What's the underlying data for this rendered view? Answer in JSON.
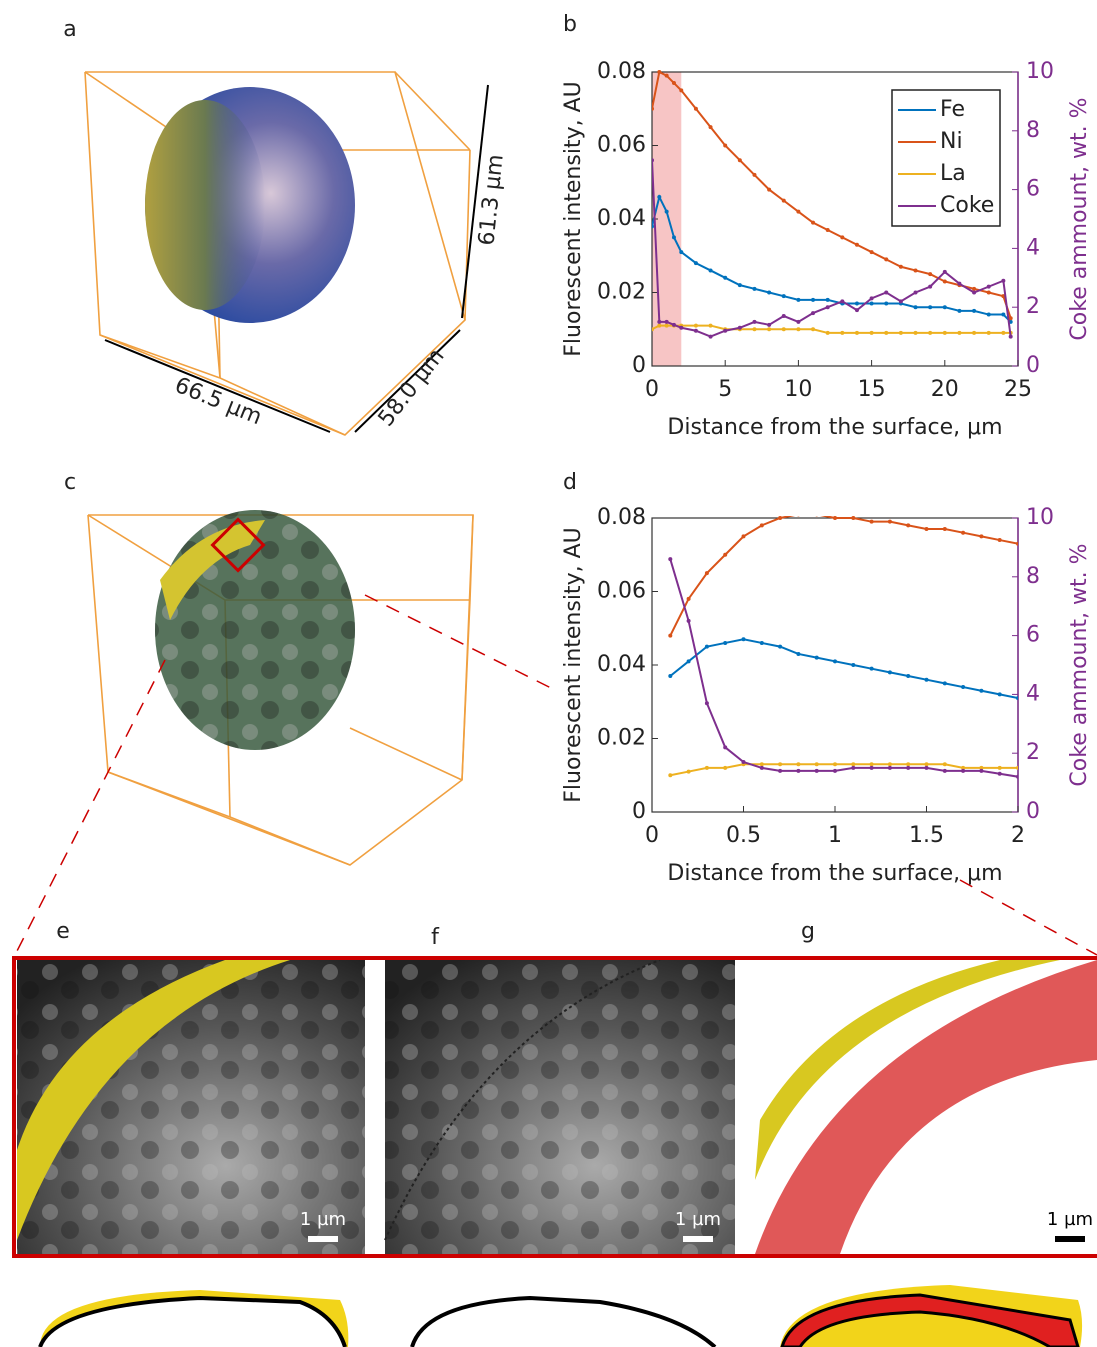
{
  "panel_labels": [
    "a",
    "b",
    "c",
    "d",
    "e",
    "f",
    "g"
  ],
  "dimensions": [
    "66.5 µm",
    "58.0 µm",
    "61.3 µm"
  ],
  "scale_bars": [
    "1 µm",
    "1 µm",
    "1 µm"
  ],
  "chart_data": [
    {
      "type": "line",
      "xlabel": "Distance from the surface, μm",
      "ylabel": "Fluorescent intensity, AU",
      "y2label": "Coke ammount, wt. %",
      "xlim": [
        0,
        25
      ],
      "xticks": [
        0,
        5,
        10,
        15,
        20,
        25
      ],
      "ylim": [
        0,
        0.08
      ],
      "yticks": [
        0,
        0.02,
        0.04,
        0.06,
        0.08
      ],
      "y2lim": [
        0,
        10
      ],
      "y2ticks": [
        0,
        2,
        4,
        6,
        8,
        10
      ],
      "highlight_x": [
        0,
        2
      ],
      "highlight_color": "#f7c5c5",
      "legend": "upper right",
      "x": [
        0,
        0.5,
        1,
        1.5,
        2,
        3,
        4,
        5,
        6,
        7,
        8,
        9,
        10,
        11,
        12,
        13,
        14,
        15,
        16,
        17,
        18,
        19,
        20,
        21,
        22,
        23,
        24,
        24.5
      ],
      "series": [
        {
          "name": "Fe",
          "color": "#0072bd",
          "values": [
            0.038,
            0.046,
            0.042,
            0.035,
            0.031,
            0.028,
            0.026,
            0.024,
            0.022,
            0.021,
            0.02,
            0.019,
            0.018,
            0.018,
            0.018,
            0.017,
            0.017,
            0.017,
            0.017,
            0.017,
            0.016,
            0.016,
            0.016,
            0.015,
            0.015,
            0.014,
            0.014,
            0.012
          ]
        },
        {
          "name": "Ni",
          "color": "#d95319",
          "values": [
            0.07,
            0.08,
            0.079,
            0.077,
            0.075,
            0.07,
            0.065,
            0.06,
            0.056,
            0.052,
            0.048,
            0.045,
            0.042,
            0.039,
            0.037,
            0.035,
            0.033,
            0.031,
            0.029,
            0.027,
            0.026,
            0.025,
            0.023,
            0.022,
            0.021,
            0.02,
            0.019,
            0.013
          ]
        },
        {
          "name": "La",
          "color": "#edb120",
          "values": [
            0.01,
            0.011,
            0.011,
            0.011,
            0.011,
            0.011,
            0.011,
            0.01,
            0.01,
            0.01,
            0.01,
            0.01,
            0.01,
            0.01,
            0.009,
            0.009,
            0.009,
            0.009,
            0.009,
            0.009,
            0.009,
            0.009,
            0.009,
            0.009,
            0.009,
            0.009,
            0.009,
            0.009
          ]
        },
        {
          "name": "Coke",
          "color": "#7e2f8e",
          "axis": "y2",
          "values": [
            7,
            1.5,
            1.5,
            1.4,
            1.3,
            1.2,
            1.0,
            1.2,
            1.3,
            1.5,
            1.4,
            1.7,
            1.5,
            1.8,
            2.0,
            2.2,
            1.9,
            2.3,
            2.5,
            2.2,
            2.5,
            2.7,
            3.2,
            2.8,
            2.5,
            2.7,
            2.9,
            1.0
          ]
        }
      ]
    },
    {
      "type": "line",
      "xlabel": "Distance from the surface, μm",
      "ylabel": "Fluorescent intensity, AU",
      "y2label": "Coke ammount, wt. %",
      "xlim": [
        0,
        2
      ],
      "xticks": [
        0,
        0.5,
        1,
        1.5,
        2
      ],
      "ylim": [
        0,
        0.08
      ],
      "yticks": [
        0,
        0.02,
        0.04,
        0.06,
        0.08
      ],
      "y2lim": [
        0,
        10
      ],
      "y2ticks": [
        0,
        2,
        4,
        6,
        8,
        10
      ],
      "x": [
        0.1,
        0.2,
        0.3,
        0.4,
        0.5,
        0.6,
        0.7,
        0.8,
        0.9,
        1.0,
        1.1,
        1.2,
        1.3,
        1.4,
        1.5,
        1.6,
        1.7,
        1.8,
        1.9,
        2.0
      ],
      "series": [
        {
          "color": "#0072bd",
          "values": [
            0.037,
            0.041,
            0.045,
            0.046,
            0.047,
            0.046,
            0.045,
            0.043,
            0.042,
            0.041,
            0.04,
            0.039,
            0.038,
            0.037,
            0.036,
            0.035,
            0.034,
            0.033,
            0.032,
            0.031
          ]
        },
        {
          "color": "#d95319",
          "values": [
            0.048,
            0.058,
            0.065,
            0.07,
            0.075,
            0.078,
            0.08,
            0.081,
            0.081,
            0.08,
            0.08,
            0.079,
            0.079,
            0.078,
            0.077,
            0.077,
            0.076,
            0.075,
            0.074,
            0.073
          ]
        },
        {
          "color": "#edb120",
          "values": [
            0.01,
            0.011,
            0.012,
            0.012,
            0.013,
            0.013,
            0.013,
            0.013,
            0.013,
            0.013,
            0.013,
            0.013,
            0.013,
            0.013,
            0.013,
            0.013,
            0.012,
            0.012,
            0.012,
            0.012
          ]
        },
        {
          "color": "#7e2f8e",
          "axis": "y2",
          "values": [
            8.6,
            6.5,
            3.7,
            2.2,
            1.7,
            1.5,
            1.4,
            1.4,
            1.4,
            1.4,
            1.5,
            1.5,
            1.5,
            1.5,
            1.5,
            1.4,
            1.4,
            1.4,
            1.3,
            1.2
          ]
        }
      ]
    }
  ]
}
